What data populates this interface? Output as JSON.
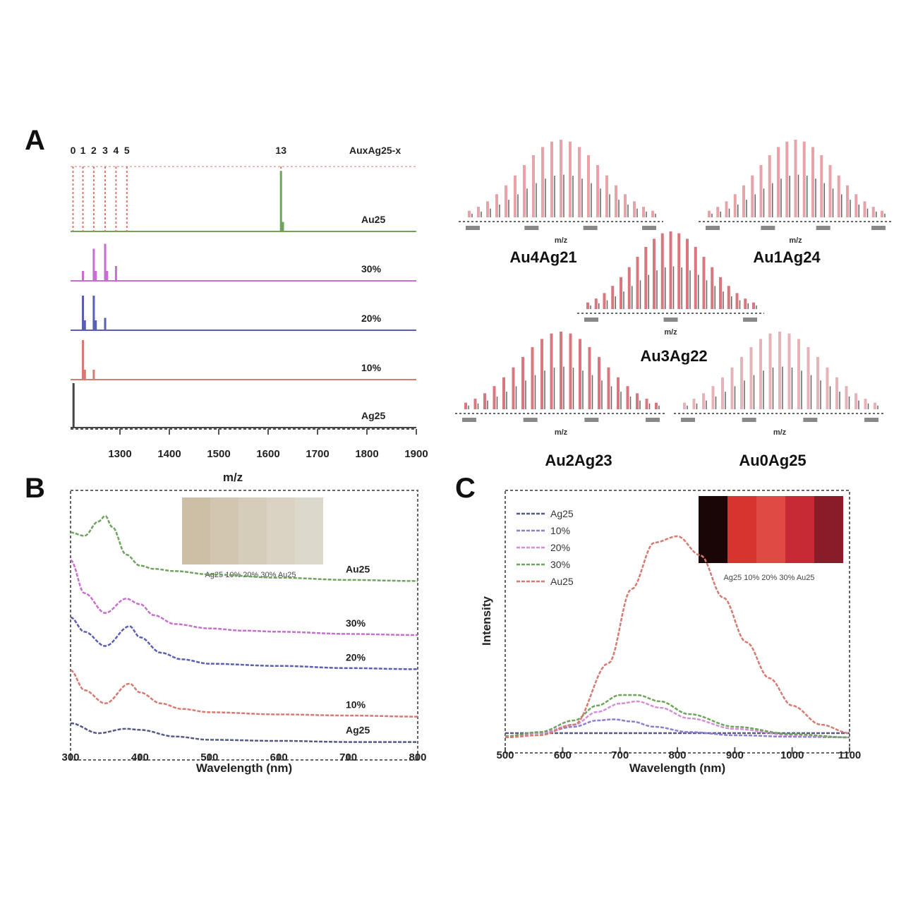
{
  "chart_data": [
    {
      "panel": "A",
      "type": "line",
      "xlabel": "m/z",
      "xlim": [
        1200,
        1900
      ],
      "xticks": [
        "1300",
        "1400",
        "1500",
        "1600",
        "1700",
        "1800",
        "1900"
      ],
      "peak_labels": [
        "0",
        "1",
        "2",
        "3",
        "4",
        "5",
        "13"
      ],
      "legend_header": "AuxAg25-x",
      "series": [
        {
          "name": "Au25",
          "color": "#6fa45e",
          "peaks": [
            [
              1626,
              0.95
            ],
            [
              1630,
              0.15
            ]
          ],
          "guides": [
            1205,
            1225,
            1247,
            1270,
            1292,
            1314,
            1626
          ]
        },
        {
          "name": "30%",
          "color": "#c66fcf",
          "peaks": [
            [
              1225,
              0.2
            ],
            [
              1247,
              0.65
            ],
            [
              1270,
              0.75
            ],
            [
              1292,
              0.3
            ],
            [
              1251,
              0.2
            ],
            [
              1274,
              0.2
            ]
          ]
        },
        {
          "name": "20%",
          "color": "#5a5fb3",
          "peaks": [
            [
              1225,
              0.7
            ],
            [
              1247,
              0.7
            ],
            [
              1270,
              0.25
            ],
            [
              1229,
              0.2
            ],
            [
              1251,
              0.2
            ]
          ]
        },
        {
          "name": "10%",
          "color": "#d77a72",
          "peaks": [
            [
              1225,
              0.8
            ],
            [
              1247,
              0.2
            ],
            [
              1229,
              0.2
            ]
          ]
        },
        {
          "name": "Ag25",
          "color": "#444444",
          "peaks": [
            [
              1206,
              0.9
            ]
          ]
        }
      ]
    },
    {
      "panel": "A-insets",
      "type": "bar",
      "insets": [
        {
          "label": "Au4Ag21",
          "xticks": [
            "",
            "",
            "",
            ""
          ],
          "xlabel": "m/z",
          "color": "#e8a3a8"
        },
        {
          "label": "Au1Ag24",
          "xticks": [
            "",
            "",
            "",
            ""
          ],
          "xlabel": "m/z",
          "color": "#e8a3a8"
        },
        {
          "label": "Au3Ag22",
          "xticks": [
            "",
            "",
            ""
          ],
          "xlabel": "m/z",
          "color": "#d9777e"
        },
        {
          "label": "Au2Ag23",
          "xticks": [
            "",
            "",
            "",
            ""
          ],
          "xlabel": "m/z",
          "color": "#d9777e"
        },
        {
          "label": "Au0Ag25",
          "xticks": [
            "",
            "",
            "",
            ""
          ],
          "xlabel": "m/z",
          "color": "#e5b3b8"
        }
      ]
    },
    {
      "panel": "B",
      "type": "line",
      "xlabel": "Wavelength (nm)",
      "xticks": [
        "300",
        "400",
        "500",
        "600",
        "700",
        "800"
      ],
      "xlim": [
        300,
        800
      ],
      "swatch_caption": "Ag25 10% 20% 30% Au25",
      "swatch_colors": [
        "#cdbfa6",
        "#d2c6b0",
        "#d6ccba",
        "#dad3c4",
        "#ddd8cc"
      ],
      "series": [
        {
          "name": "Au25",
          "color": "#6fa45e",
          "x": [
            300,
            320,
            340,
            350,
            360,
            380,
            400,
            420,
            450,
            500,
            600,
            700,
            800
          ],
          "y": [
            3.45,
            3.42,
            3.55,
            3.6,
            3.5,
            3.25,
            3.15,
            3.12,
            3.1,
            3.07,
            3.04,
            3.02,
            3.01
          ]
        },
        {
          "name": "30%",
          "color": "#c66fcf",
          "x": [
            300,
            320,
            350,
            380,
            400,
            420,
            450,
            500,
            550,
            600,
            700,
            800
          ],
          "y": [
            3.2,
            2.9,
            2.72,
            2.85,
            2.8,
            2.7,
            2.62,
            2.58,
            2.56,
            2.55,
            2.53,
            2.52
          ]
        },
        {
          "name": "20%",
          "color": "#5a5fb3",
          "x": [
            300,
            320,
            350,
            385,
            400,
            430,
            460,
            500,
            600,
            700,
            800
          ],
          "y": [
            2.68,
            2.55,
            2.42,
            2.6,
            2.5,
            2.36,
            2.3,
            2.26,
            2.24,
            2.22,
            2.21
          ]
        },
        {
          "name": "10%",
          "color": "#d77a72",
          "x": [
            300,
            320,
            350,
            385,
            400,
            430,
            460,
            500,
            600,
            700,
            800
          ],
          "y": [
            2.2,
            2.02,
            1.9,
            2.08,
            2.0,
            1.9,
            1.85,
            1.82,
            1.8,
            1.79,
            1.78
          ]
        },
        {
          "name": "Ag25",
          "color": "#555a88",
          "x": [
            300,
            340,
            380,
            400,
            450,
            500,
            600,
            700,
            800
          ],
          "y": [
            1.72,
            1.63,
            1.67,
            1.66,
            1.6,
            1.57,
            1.56,
            1.55,
            1.55
          ]
        }
      ],
      "trace_labels": [
        "Au25",
        "30%",
        "20%",
        "10%",
        "Ag25"
      ]
    },
    {
      "panel": "C",
      "type": "line",
      "xlabel": "Wavelength (nm)",
      "ylabel": "Intensity",
      "xticks": [
        "500",
        "600",
        "700",
        "800",
        "900",
        "1000",
        "1100"
      ],
      "xlim": [
        500,
        1100
      ],
      "ylim": [
        0,
        1.0
      ],
      "swatch_caption": "Ag25 10% 20% 30% Au25",
      "swatch_colors": [
        "#1a0606",
        "#d7342f",
        "#e04a45",
        "#c82a35",
        "#8a1c2a"
      ],
      "series": [
        {
          "name": "Ag25",
          "color": "#555a88",
          "x": [
            500,
            600,
            700,
            800,
            900,
            1000,
            1100
          ],
          "y": [
            0.02,
            0.02,
            0.02,
            0.02,
            0.02,
            0.02,
            0.02
          ]
        },
        {
          "name": "10%",
          "color": "#8a7fd0",
          "x": [
            500,
            560,
            620,
            660,
            690,
            720,
            760,
            820,
            900,
            1000,
            1100
          ],
          "y": [
            0.005,
            0.02,
            0.05,
            0.08,
            0.085,
            0.075,
            0.05,
            0.025,
            0.01,
            0.003,
            0.0
          ]
        },
        {
          "name": "20%",
          "color": "#d68fd6",
          "x": [
            500,
            560,
            620,
            660,
            700,
            730,
            770,
            820,
            900,
            1000,
            1100
          ],
          "y": [
            0.005,
            0.02,
            0.06,
            0.12,
            0.16,
            0.17,
            0.14,
            0.09,
            0.04,
            0.01,
            0.0
          ]
        },
        {
          "name": "30%",
          "color": "#6fa45e",
          "x": [
            500,
            560,
            620,
            660,
            700,
            730,
            770,
            820,
            900,
            1000,
            1100
          ],
          "y": [
            0.005,
            0.025,
            0.08,
            0.15,
            0.2,
            0.2,
            0.17,
            0.11,
            0.05,
            0.015,
            0.0
          ]
        },
        {
          "name": "Au25",
          "color": "#d77a72",
          "x": [
            500,
            560,
            620,
            680,
            720,
            760,
            800,
            840,
            880,
            920,
            960,
            1000,
            1050,
            1100
          ],
          "y": [
            0.0,
            0.01,
            0.06,
            0.35,
            0.7,
            0.92,
            0.95,
            0.86,
            0.66,
            0.45,
            0.28,
            0.15,
            0.06,
            0.02
          ]
        }
      ]
    }
  ]
}
